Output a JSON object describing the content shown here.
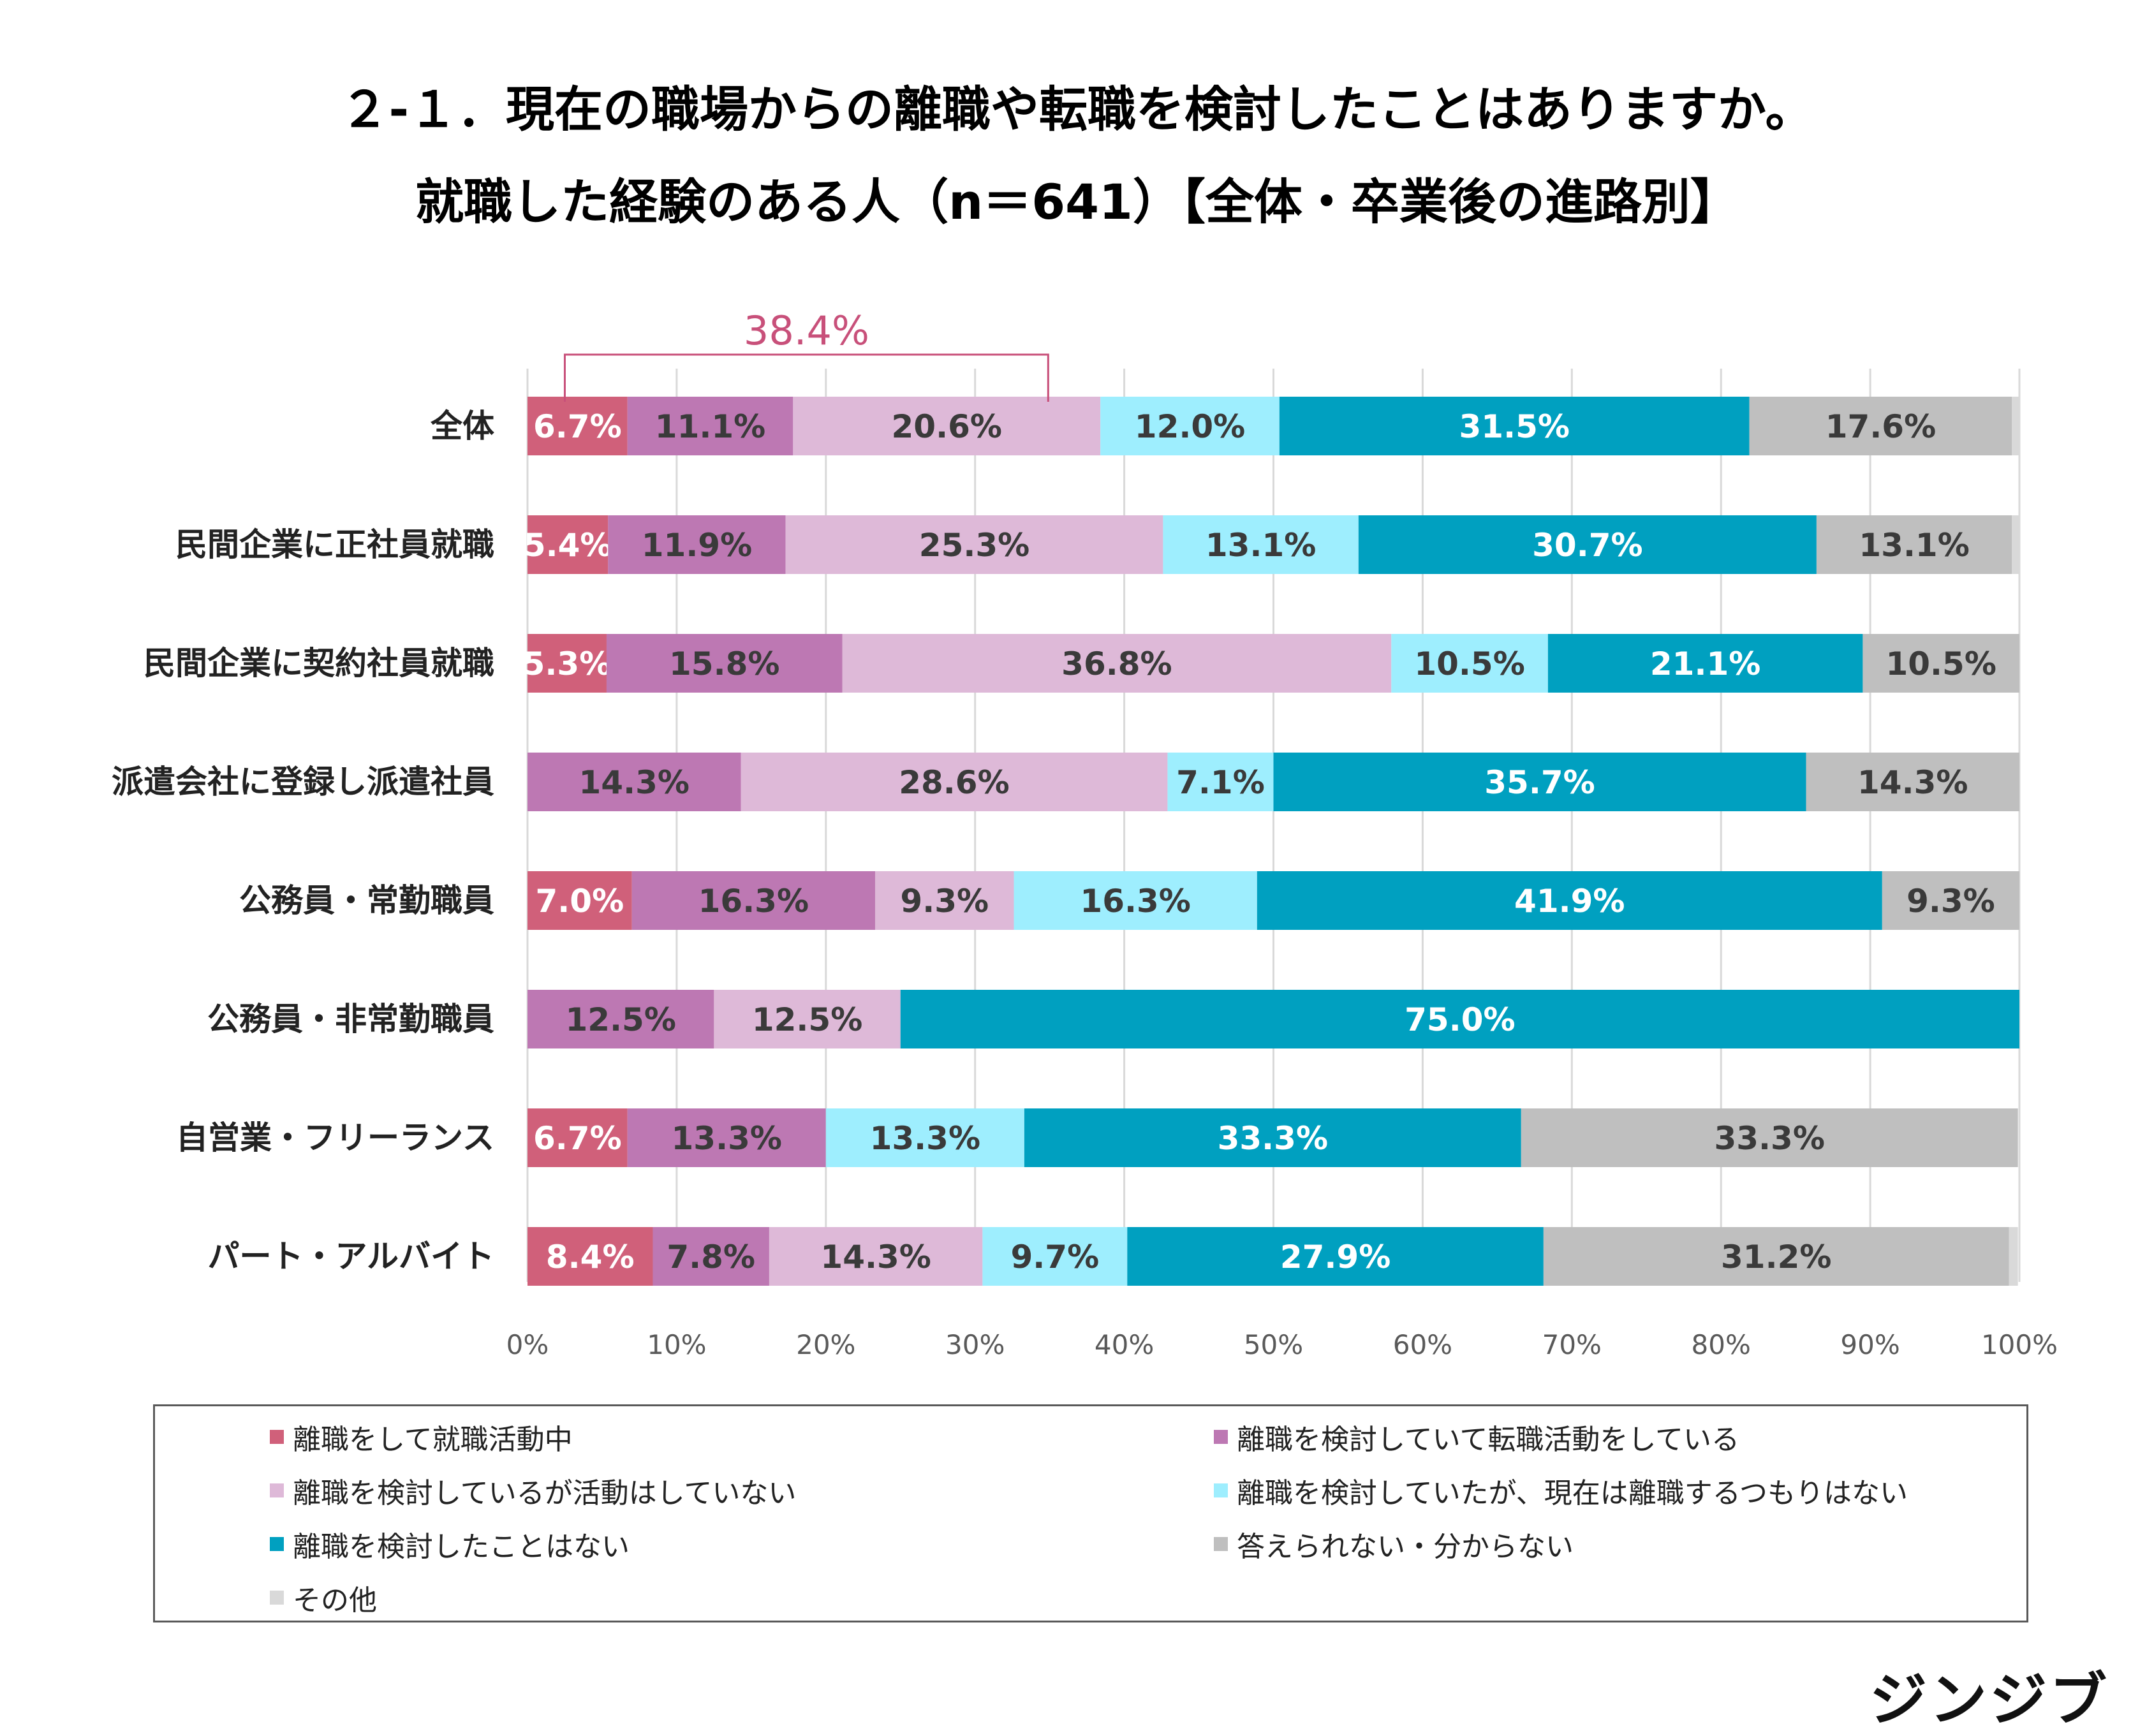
{
  "title_line1": "２-１．現在の職場からの離職や転職を検討したことはありますか。",
  "title_line2": "就職した経験のある人（n＝641）【全体・卒業後の進路別】",
  "brand_logo": "ジンジブ",
  "chart_data": {
    "type": "bar",
    "orientation": "horizontal",
    "stacked": true,
    "percent_stacked": true,
    "categories": [
      "全体",
      "民間企業に正社員就職",
      "民間企業に契約社員就職",
      "派遣会社に登録し派遣社員",
      "公務員・常勤職員",
      "公務員・非常勤職員",
      "自営業・フリーランス",
      "パート・アルバイト"
    ],
    "series": [
      {
        "name": "離職をして就職活動中",
        "color": "#d0607a",
        "values": [
          6.7,
          5.4,
          5.3,
          0,
          7.0,
          0,
          6.7,
          8.4
        ]
      },
      {
        "name": "離職を検討していて転職活動をしている",
        "color": "#bd78b3",
        "values": [
          11.1,
          11.9,
          15.8,
          14.3,
          16.3,
          12.5,
          13.3,
          7.8
        ]
      },
      {
        "name": "離職を検討しているが活動はしていない",
        "color": "#deb9d8",
        "values": [
          20.6,
          25.3,
          36.8,
          28.6,
          9.3,
          12.5,
          0,
          14.3
        ]
      },
      {
        "name": "離職を検討していたが、現在は離職するつもりはない",
        "color": "#9eeefe",
        "values": [
          12.0,
          13.1,
          10.5,
          7.1,
          16.3,
          0,
          13.3,
          9.7
        ]
      },
      {
        "name": "離職を検討したことはない",
        "color": "#00a0c0",
        "values": [
          31.5,
          30.7,
          21.1,
          35.7,
          41.9,
          75.0,
          33.3,
          27.9
        ]
      },
      {
        "name": "答えられない・分からない",
        "color": "#bfbfbf",
        "values": [
          17.6,
          13.1,
          10.5,
          14.3,
          9.3,
          0,
          33.3,
          31.2
        ]
      },
      {
        "name": "その他",
        "color": "#d9d9d9",
        "values": [
          0.6,
          0.5,
          0,
          0,
          0,
          0,
          0,
          0.6
        ]
      }
    ],
    "data_labels": [
      [
        "6.7%",
        "11.1%",
        "20.6%",
        "12.0%",
        "31.5%",
        "17.6%",
        ""
      ],
      [
        "5.4%",
        "11.9%",
        "25.3%",
        "13.1%",
        "30.7%",
        "13.1%",
        ""
      ],
      [
        "5.3%",
        "15.8%",
        "36.8%",
        "10.5%",
        "21.1%",
        "10.5%",
        ""
      ],
      [
        "",
        "14.3%",
        "28.6%",
        "7.1%",
        "35.7%",
        "14.3%",
        ""
      ],
      [
        "7.0%",
        "16.3%",
        "9.3%",
        "16.3%",
        "41.9%",
        "9.3%",
        ""
      ],
      [
        "",
        "12.5%",
        "12.5%",
        "",
        "75.0%",
        "",
        ""
      ],
      [
        "6.7%",
        "13.3%",
        "",
        "13.3%",
        "33.3%",
        "33.3%",
        ""
      ],
      [
        "8.4%",
        "7.8%",
        "14.3%",
        "9.7%",
        "27.9%",
        "31.2%",
        ""
      ]
    ],
    "label_text_colors": [
      "#ffffff",
      "#3a3a3a",
      "#3a3a3a",
      "#3a3a3a",
      "#ffffff",
      "#3a3a3a",
      "#3a3a3a"
    ],
    "x_ticks": [
      "0%",
      "10%",
      "20%",
      "30%",
      "40%",
      "50%",
      "60%",
      "70%",
      "80%",
      "90%",
      "100%"
    ],
    "xlim": [
      0,
      100
    ],
    "grid": true,
    "legend_position": "bottom",
    "annotation": {
      "text": "38.4%",
      "target_category": "全体",
      "spans_series": [
        0,
        1,
        2
      ],
      "color": "#c8507a"
    }
  }
}
